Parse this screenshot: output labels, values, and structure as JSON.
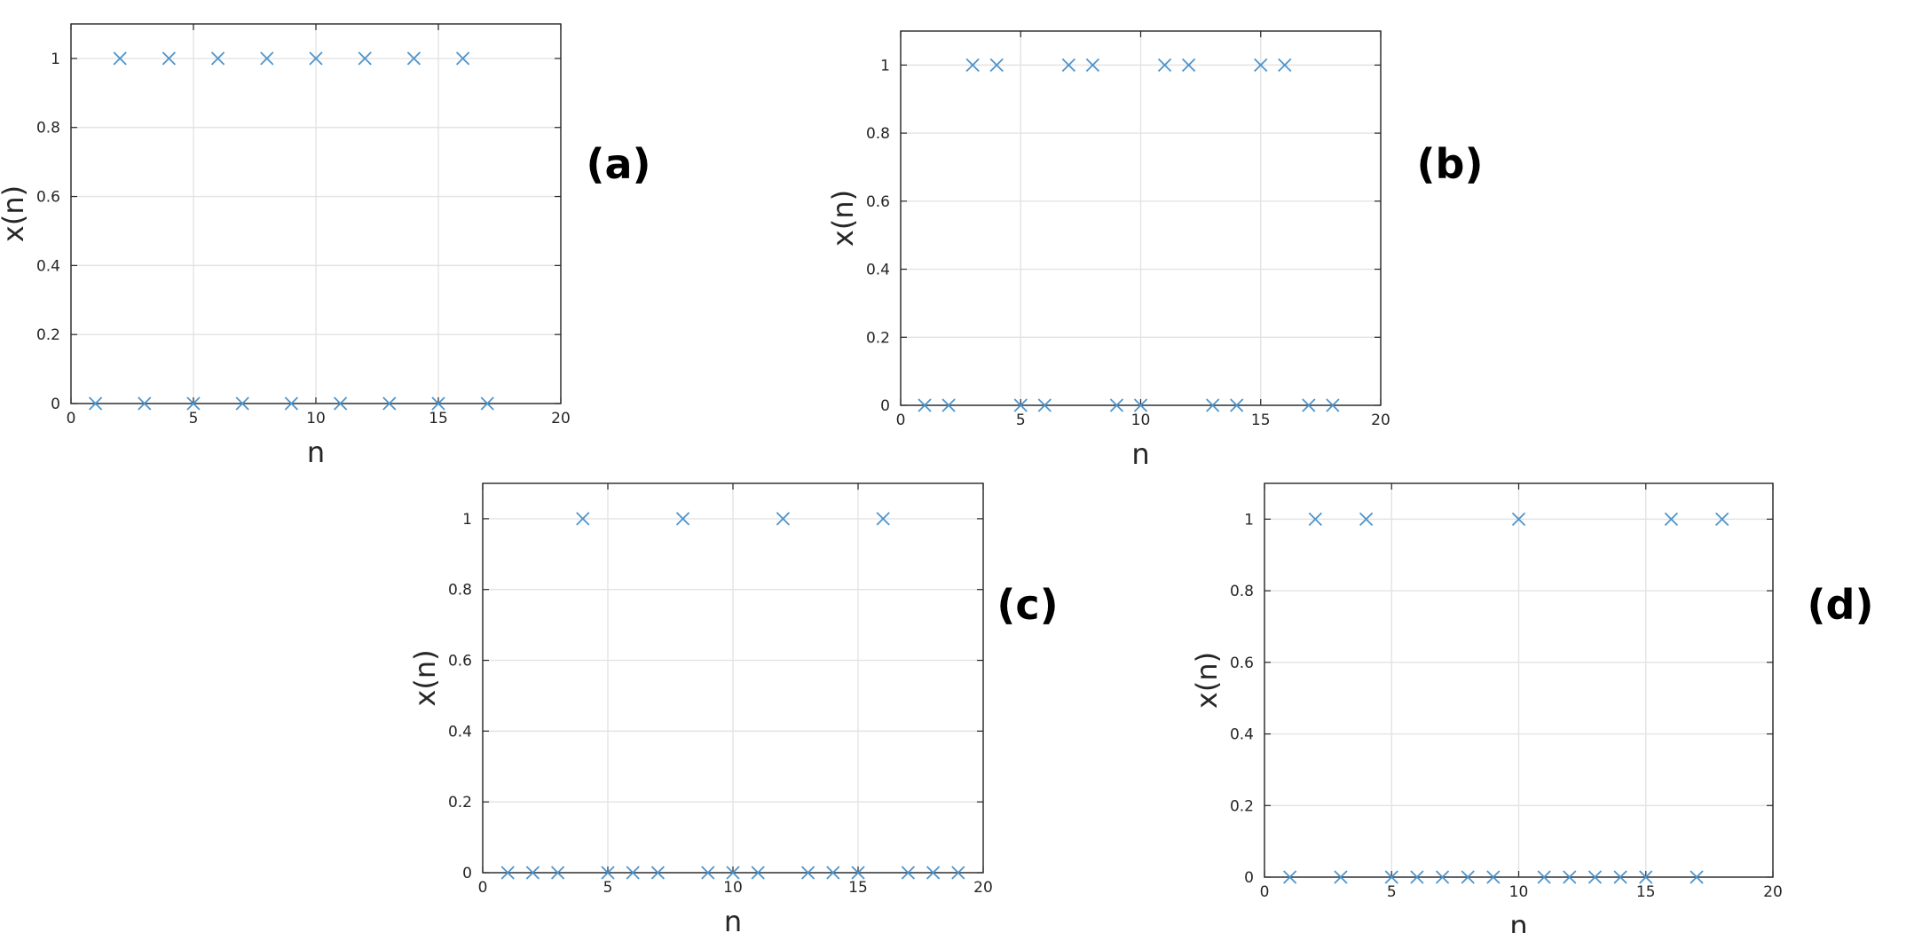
{
  "chart_data": [
    {
      "type": "scatter",
      "annotation": "(a)",
      "xlabel": "n",
      "ylabel": "x(n)",
      "color": "#4d94cc",
      "grid": true,
      "x": [
        1,
        2,
        3,
        4,
        5,
        6,
        7,
        8,
        9,
        10,
        11,
        12,
        13,
        14,
        15,
        16,
        17
      ],
      "values": [
        0,
        1,
        0,
        1,
        0,
        1,
        0,
        1,
        0,
        1,
        0,
        1,
        0,
        1,
        0,
        1,
        0
      ],
      "xlim": [
        0,
        20
      ],
      "xticks": [
        0,
        5,
        10,
        15,
        20
      ],
      "ylim": [
        0,
        1.1
      ],
      "yticks": [
        0,
        0.2,
        0.4,
        0.6,
        0.8,
        1
      ]
    },
    {
      "type": "scatter",
      "annotation": "(b)",
      "xlabel": "n",
      "ylabel": "x(n)",
      "color": "#4d94cc",
      "grid": true,
      "x": [
        1,
        2,
        3,
        4,
        5,
        6,
        7,
        8,
        9,
        10,
        11,
        12,
        13,
        14,
        15,
        16,
        17,
        18
      ],
      "values": [
        0,
        0,
        1,
        1,
        0,
        0,
        1,
        1,
        0,
        0,
        1,
        1,
        0,
        0,
        1,
        1,
        0,
        0
      ],
      "xlim": [
        0,
        20
      ],
      "xticks": [
        0,
        5,
        10,
        15,
        20
      ],
      "ylim": [
        0,
        1.1
      ],
      "yticks": [
        0,
        0.2,
        0.4,
        0.6,
        0.8,
        1
      ]
    },
    {
      "type": "scatter",
      "annotation": "(c)",
      "xlabel": "n",
      "ylabel": "x(n)",
      "color": "#4d94cc",
      "grid": true,
      "x": [
        1,
        2,
        3,
        4,
        5,
        6,
        7,
        8,
        9,
        10,
        11,
        12,
        13,
        14,
        15,
        16,
        17,
        18,
        19
      ],
      "values": [
        0,
        0,
        0,
        1,
        0,
        0,
        0,
        1,
        0,
        0,
        0,
        1,
        0,
        0,
        0,
        1,
        0,
        0,
        0
      ],
      "xlim": [
        0,
        20
      ],
      "xticks": [
        0,
        5,
        10,
        15,
        20
      ],
      "ylim": [
        0,
        1.1
      ],
      "yticks": [
        0,
        0.2,
        0.4,
        0.6,
        0.8,
        1
      ]
    },
    {
      "type": "scatter",
      "annotation": "(d)",
      "xlabel": "n",
      "ylabel": "x(n)",
      "color": "#4d94cc",
      "grid": true,
      "x": [
        1,
        2,
        3,
        4,
        5,
        6,
        7,
        8,
        9,
        10,
        11,
        12,
        13,
        14,
        15,
        16,
        17,
        18
      ],
      "values": [
        0,
        1,
        0,
        1,
        0,
        0,
        0,
        0,
        0,
        1,
        0,
        0,
        0,
        0,
        0,
        1,
        0,
        1
      ],
      "xlim": [
        0,
        20
      ],
      "xticks": [
        0,
        5,
        10,
        15,
        20
      ],
      "ylim": [
        0,
        1.1
      ],
      "yticks": [
        0,
        0.2,
        0.4,
        0.6,
        0.8,
        1
      ]
    }
  ]
}
